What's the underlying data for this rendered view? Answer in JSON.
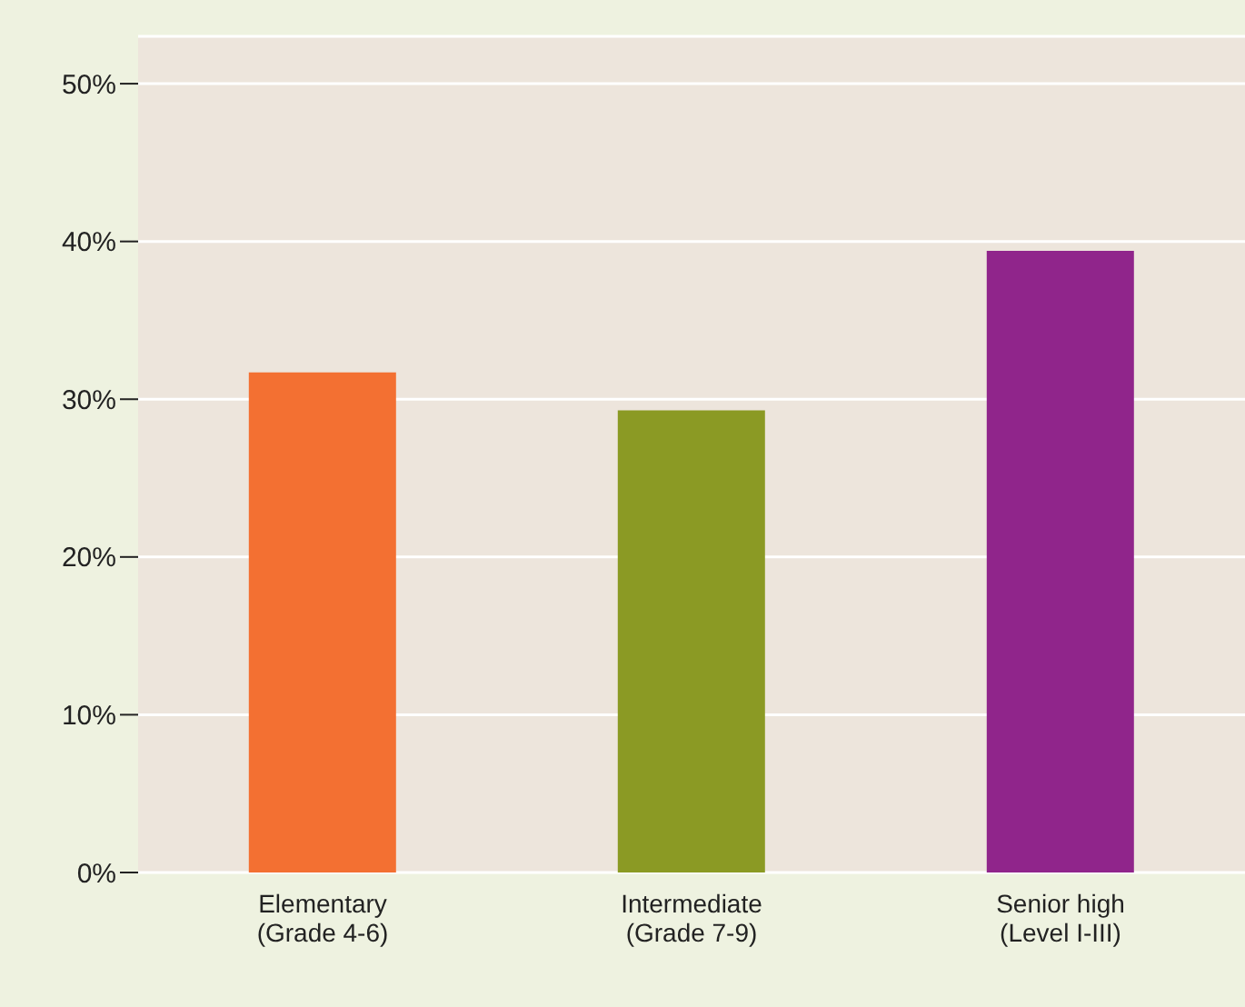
{
  "chart_data": {
    "type": "bar",
    "categories": [
      "Elementary\n(Grade 4-6)",
      "Intermediate\n(Grade 7-9)",
      "Senior high\n(Level I-III)"
    ],
    "values": [
      31.7,
      29.3,
      39.4
    ],
    "colors": [
      "#f37032",
      "#8b9a24",
      "#90258b"
    ],
    "ylim": [
      0,
      53
    ],
    "yticks": [
      {
        "value": 0,
        "label": "0%"
      },
      {
        "value": 10,
        "label": "10%"
      },
      {
        "value": 20,
        "label": "20%"
      },
      {
        "value": 30,
        "label": "30%"
      },
      {
        "value": 40,
        "label": "40%"
      },
      {
        "value": 50,
        "label": "50%"
      }
    ],
    "grid": "y"
  }
}
